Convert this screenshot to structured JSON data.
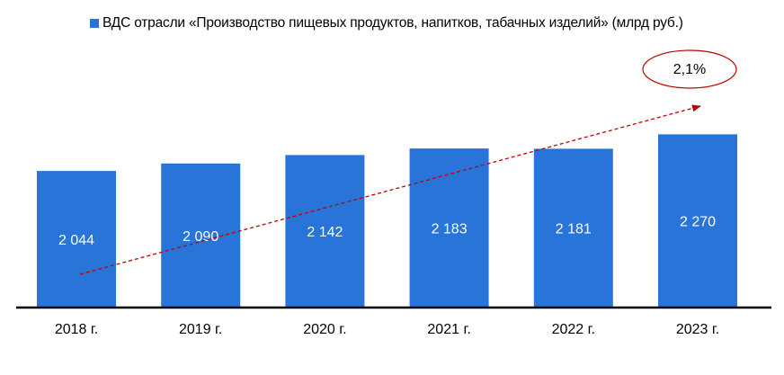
{
  "chart_data": {
    "type": "bar",
    "legend_position": "top",
    "grid": false,
    "series": [
      {
        "name": "ВДС отрасли «Производство пищевых продуктов, напитков, табачных изделий» (млрд руб.)",
        "values": [
          2044,
          2090,
          2142,
          2183,
          2181,
          2270
        ],
        "value_labels": [
          "2 044",
          "2 090",
          "2 142",
          "2 183",
          "2 181",
          "2 270"
        ]
      }
    ],
    "categories": [
      "2018 г.",
      "2019 г.",
      "2020 г.",
      "2021 г.",
      "2022 г.",
      "2023 г."
    ],
    "annotation": {
      "text": "2,1%",
      "shape": "ellipse",
      "arrow": "dashed trend arrow"
    }
  },
  "colors": {
    "bar": "#2874d9",
    "trend_arrow": "#c00000",
    "annotation_outline": "#c00000",
    "axis": "#000000"
  }
}
